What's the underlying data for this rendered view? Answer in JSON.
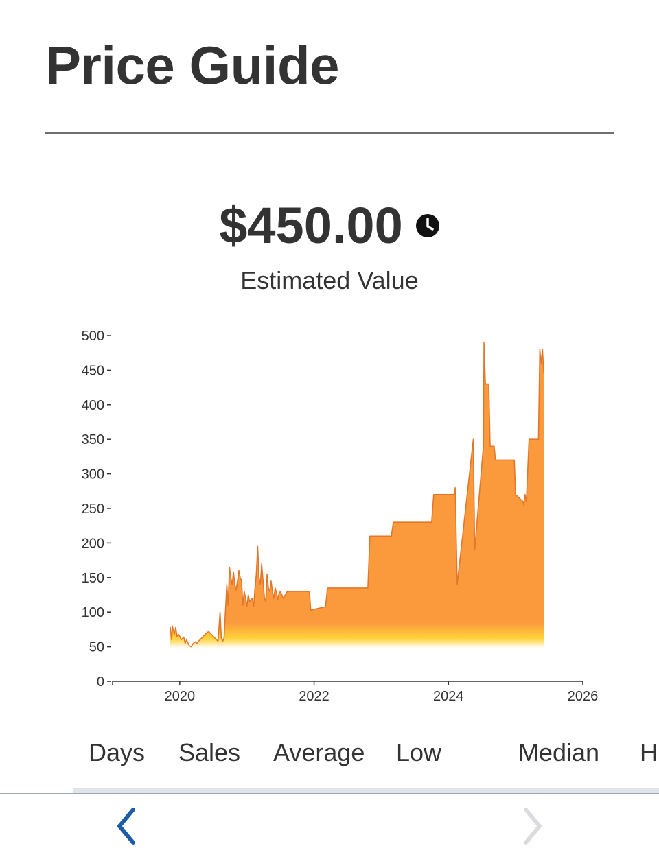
{
  "page": {
    "title": "Price Guide"
  },
  "estimate": {
    "price": "$450.00",
    "label": "Estimated Value",
    "info_icon": "clock-icon"
  },
  "chart_data": {
    "type": "area",
    "title": "",
    "xlabel": "",
    "ylabel": "",
    "ylim": [
      0,
      500
    ],
    "xlim": [
      2019,
      2026
    ],
    "yticks": [
      "0",
      "50",
      "100",
      "150",
      "200",
      "250",
      "300",
      "350",
      "400",
      "450",
      "500"
    ],
    "xticks": [
      "2020",
      "2022",
      "2024",
      "2026"
    ],
    "fill_color": "#fa9a3c",
    "fill_gradient_bottom": "#ffd23a",
    "line_color": "#e2772b",
    "grid": false,
    "series": [
      {
        "x": [
          2019.85,
          2019.86,
          2019.88,
          2019.89,
          2019.91,
          2019.92,
          2019.94,
          2019.96,
          2019.98,
          2020.0,
          2020.02,
          2020.04,
          2020.06,
          2020.08,
          2020.1,
          2020.14,
          2020.17,
          2020.2,
          2020.23,
          2020.26,
          2020.28,
          2020.4,
          2020.43,
          2020.57,
          2020.6,
          2020.62,
          2020.64,
          2020.66,
          2020.7,
          2020.72,
          2020.74,
          2020.76,
          2020.78,
          2020.8,
          2020.82,
          2020.84,
          2020.86,
          2020.88,
          2020.9,
          2020.92,
          2020.94,
          2020.96,
          2020.98,
          2021.0,
          2021.02,
          2021.04,
          2021.06,
          2021.08,
          2021.1,
          2021.12,
          2021.14,
          2021.16,
          2021.18,
          2021.2,
          2021.22,
          2021.24,
          2021.26,
          2021.28,
          2021.3,
          2021.32,
          2021.34,
          2021.36,
          2021.38,
          2021.4,
          2021.42,
          2021.44,
          2021.46,
          2021.48,
          2021.5,
          2021.52,
          2021.54,
          2021.6,
          2021.65,
          2021.93,
          2021.95,
          2022.17,
          2022.2,
          2022.8,
          2022.83,
          2023.15,
          2023.18,
          2023.75,
          2023.78,
          2024.08,
          2024.1,
          2024.13,
          2024.37,
          2024.39,
          2024.52,
          2024.53,
          2024.55,
          2024.6,
          2024.62,
          2024.68,
          2024.7,
          2024.98,
          2025.0,
          2025.11,
          2025.12,
          2025.14,
          2025.16,
          2025.2,
          2025.22,
          2025.25,
          2025.34,
          2025.36,
          2025.38,
          2025.4,
          2025.42
        ],
        "y": [
          75,
          78,
          60,
          80,
          72,
          68,
          78,
          65,
          68,
          65,
          60,
          62,
          64,
          55,
          60,
          52,
          50,
          55,
          57,
          55,
          58,
          70,
          72,
          58,
          100,
          62,
          58,
          63,
          140,
          110,
          165,
          150,
          140,
          158,
          140,
          132,
          145,
          160,
          150,
          145,
          110,
          130,
          120,
          108,
          125,
          115,
          118,
          120,
          108,
          135,
          155,
          195,
          150,
          140,
          170,
          145,
          120,
          115,
          155,
          135,
          130,
          145,
          130,
          120,
          135,
          128,
          118,
          128,
          130,
          125,
          120,
          130,
          130,
          130,
          103,
          108,
          135,
          135,
          210,
          210,
          230,
          230,
          270,
          270,
          280,
          140,
          350,
          190,
          340,
          490,
          430,
          430,
          340,
          340,
          320,
          320,
          270,
          260,
          255,
          270,
          260,
          350,
          350,
          350,
          350,
          480,
          460,
          480,
          445
        ]
      }
    ]
  },
  "columns": {
    "days": "Days",
    "sales": "Sales",
    "average": "Average",
    "low": "Low",
    "median": "Median",
    "high": "H"
  },
  "nav": {
    "prev_icon": "chevron-left-icon",
    "next_icon": "chevron-right-icon",
    "active_color": "#1d5ca8",
    "disabled_color": "#d9dbde"
  }
}
